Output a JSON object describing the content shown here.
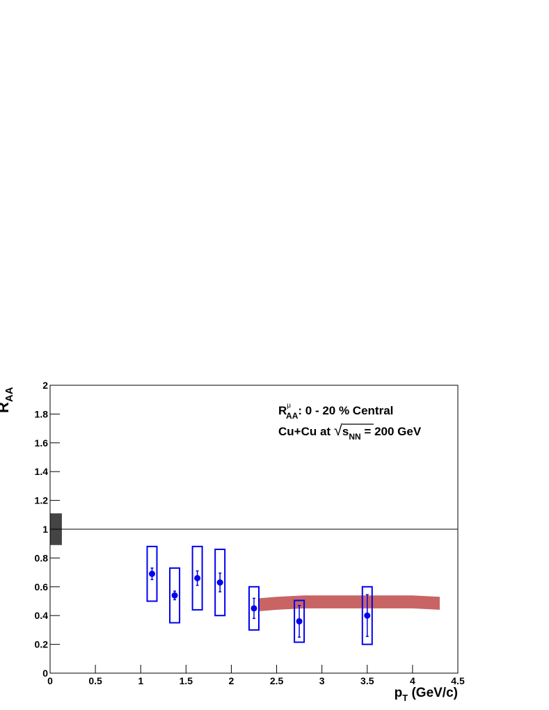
{
  "chart_data": {
    "type": "scatter",
    "x_label": {
      "main": "p",
      "sub": "T",
      "rest": " (GeV/c)"
    },
    "y_label": {
      "main": "R",
      "sub": "AA"
    },
    "annotations": [
      {
        "main": "R",
        "sub": "AA",
        "sup": "μ",
        "rest": ": 0 - 20 % Central"
      },
      {
        "prefix": "Cu+Cu at ",
        "radical": "√",
        "radicand": "s",
        "sub": "NN",
        "suffix": " = 200 GeV"
      }
    ],
    "xlim": [
      0,
      4.5
    ],
    "ylim": [
      0,
      2
    ],
    "xticks": [
      0,
      0.5,
      1,
      1.5,
      2,
      2.5,
      3,
      3.5,
      4,
      4.5
    ],
    "yticks": [
      0,
      0.2,
      0.4,
      0.6,
      0.8,
      1,
      1.2,
      1.4,
      1.6,
      1.8,
      2
    ],
    "reference_line": 1,
    "normalization": {
      "xlim": [
        0,
        0.13
      ],
      "values": [
        0.89,
        1.11
      ],
      "color": "#444444"
    },
    "series": [
      {
        "color": "#0000ee",
        "x": [
          1.125,
          1.375,
          1.625,
          1.875,
          2.25,
          2.75,
          3.5
        ],
        "values": [
          0.69,
          0.54,
          0.66,
          0.63,
          0.45,
          0.36,
          0.4
        ],
        "stat_errors": [
          0.04,
          0.03,
          0.05,
          0.065,
          0.07,
          0.11,
          0.145
        ],
        "syst_errors": [
          0.19,
          0.19,
          0.22,
          0.23,
          0.15,
          0.145,
          0.2
        ]
      }
    ],
    "band": {
      "color": "#c86464",
      "x": [
        2.3,
        2.5,
        2.8,
        3.2,
        3.6,
        4.0,
        4.3
      ],
      "low": [
        0.43,
        0.44,
        0.45,
        0.45,
        0.45,
        0.45,
        0.44
      ],
      "high": [
        0.52,
        0.53,
        0.54,
        0.54,
        0.54,
        0.54,
        0.53
      ]
    }
  }
}
